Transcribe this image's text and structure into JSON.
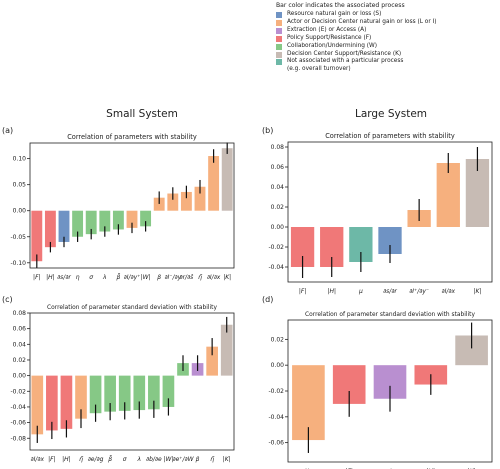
{
  "legend": {
    "title": "Bar color indicates the associated process",
    "items": [
      {
        "label": "Resource natural gain or loss (S)",
        "color": "#6f93c4"
      },
      {
        "label": "Actor or Decision Center natural gain or loss (L or I)",
        "color": "#f6b07e"
      },
      {
        "label": "Extraction (E) or Access (A)",
        "color": "#b98fd0"
      },
      {
        "label": "Policy Support/Resistance (F)",
        "color": "#f07878"
      },
      {
        "label": "Collaboration/Undermining (W)",
        "color": "#86c886"
      },
      {
        "label": "Decision Center Support/Resistance (K)",
        "color": "#c7bbb4"
      },
      {
        "label": "Not associated with a particular process",
        "color": "#6db8a7"
      }
    ],
    "note": "(e.g. overall turnover)"
  },
  "headers": {
    "small": "Small System",
    "large": "Large System"
  },
  "chart_data": [
    {
      "panel": "(a)",
      "type": "bar",
      "title": "Correlation of parameters with stability",
      "ylim": [
        -0.11,
        0.13
      ],
      "yticks": [
        -0.1,
        -0.05,
        0.0,
        0.05,
        0.1
      ],
      "categories": [
        "|F|",
        "|H|",
        "∂s/∂r",
        "η",
        "σ",
        "λ",
        "β̃",
        "∂I/∂y⁺",
        "|W|",
        "β",
        "∂I⁻/∂y",
        "∂r/∂ŝ",
        "η̃",
        "∂I/∂x",
        "|K|"
      ],
      "values": [
        -0.097,
        -0.07,
        -0.06,
        -0.05,
        -0.045,
        -0.04,
        -0.036,
        -0.033,
        -0.03,
        0.025,
        0.033,
        0.036,
        0.046,
        0.105,
        0.12
      ],
      "errors": [
        0.013,
        0.01,
        0.01,
        0.01,
        0.01,
        0.01,
        0.01,
        0.01,
        0.01,
        0.012,
        0.012,
        0.012,
        0.013,
        0.013,
        0.011
      ],
      "colors": [
        "#f07878",
        "#f07878",
        "#6f93c4",
        "#86c886",
        "#86c886",
        "#86c886",
        "#86c886",
        "#f6b07e",
        "#86c886",
        "#f6b07e",
        "#f6b07e",
        "#f6b07e",
        "#f6b07e",
        "#f6b07e",
        "#c7bbb4"
      ]
    },
    {
      "panel": "(b)",
      "type": "bar",
      "title": "Correlation of parameters with stability",
      "ylim": [
        -0.055,
        0.085
      ],
      "yticks": [
        -0.04,
        -0.02,
        0.0,
        0.02,
        0.04,
        0.06,
        0.08
      ],
      "categories": [
        "|F|",
        "|H|",
        "μ",
        "∂s/∂r",
        "∂I⁺/∂y⁻",
        "∂I/∂x",
        "|K|"
      ],
      "values": [
        -0.04,
        -0.04,
        -0.035,
        -0.027,
        0.017,
        0.064,
        0.068
      ],
      "errors": [
        0.011,
        0.01,
        0.01,
        0.009,
        0.011,
        0.01,
        0.012
      ],
      "colors": [
        "#f07878",
        "#f07878",
        "#6db8a7",
        "#6f93c4",
        "#f6b07e",
        "#f6b07e",
        "#c7bbb4"
      ]
    },
    {
      "panel": "(c)",
      "type": "bar",
      "title": "Correlation of parameter standard deviation with stability",
      "ylim": [
        -0.095,
        0.08
      ],
      "yticks": [
        -0.08,
        -0.06,
        -0.04,
        -0.02,
        0.0,
        0.02,
        0.04,
        0.06,
        0.08
      ],
      "categories": [
        "∂I/∂x",
        "|F|",
        "|H|",
        "η̃",
        "∂e/∂g",
        "β̃",
        "σ",
        "λ",
        "∂b/∂e",
        "|W|",
        "∂e⁺/∂W",
        "β",
        "η̃",
        "|K|"
      ],
      "values": [
        -0.075,
        -0.07,
        -0.068,
        -0.055,
        -0.048,
        -0.046,
        -0.045,
        -0.044,
        -0.043,
        -0.04,
        0.016,
        0.016,
        0.037,
        0.065
      ],
      "errors": [
        0.011,
        0.011,
        0.011,
        0.012,
        0.011,
        0.011,
        0.011,
        0.011,
        0.011,
        0.011,
        0.01,
        0.01,
        0.011,
        0.01
      ],
      "colors": [
        "#f6b07e",
        "#f07878",
        "#f07878",
        "#f6b07e",
        "#86c886",
        "#86c886",
        "#86c886",
        "#86c886",
        "#86c886",
        "#86c886",
        "#86c886",
        "#b98fd0",
        "#f6b07e",
        "#c7bbb4"
      ]
    },
    {
      "panel": "(d)",
      "type": "bar",
      "title": "Correlation of parameter standard deviation with stability",
      "ylim": [
        -0.075,
        0.035
      ],
      "yticks": [
        -0.06,
        -0.04,
        -0.02,
        0.0,
        0.02
      ],
      "categories": [
        "∂I/∂x",
        "|F|",
        "∂e/∂g",
        "|H|",
        "|K|"
      ],
      "values": [
        -0.058,
        -0.03,
        -0.026,
        -0.015,
        0.023
      ],
      "errors": [
        0.01,
        0.01,
        0.01,
        0.008,
        0.01
      ],
      "colors": [
        "#f6b07e",
        "#f07878",
        "#b98fd0",
        "#f07878",
        "#c7bbb4"
      ]
    }
  ]
}
